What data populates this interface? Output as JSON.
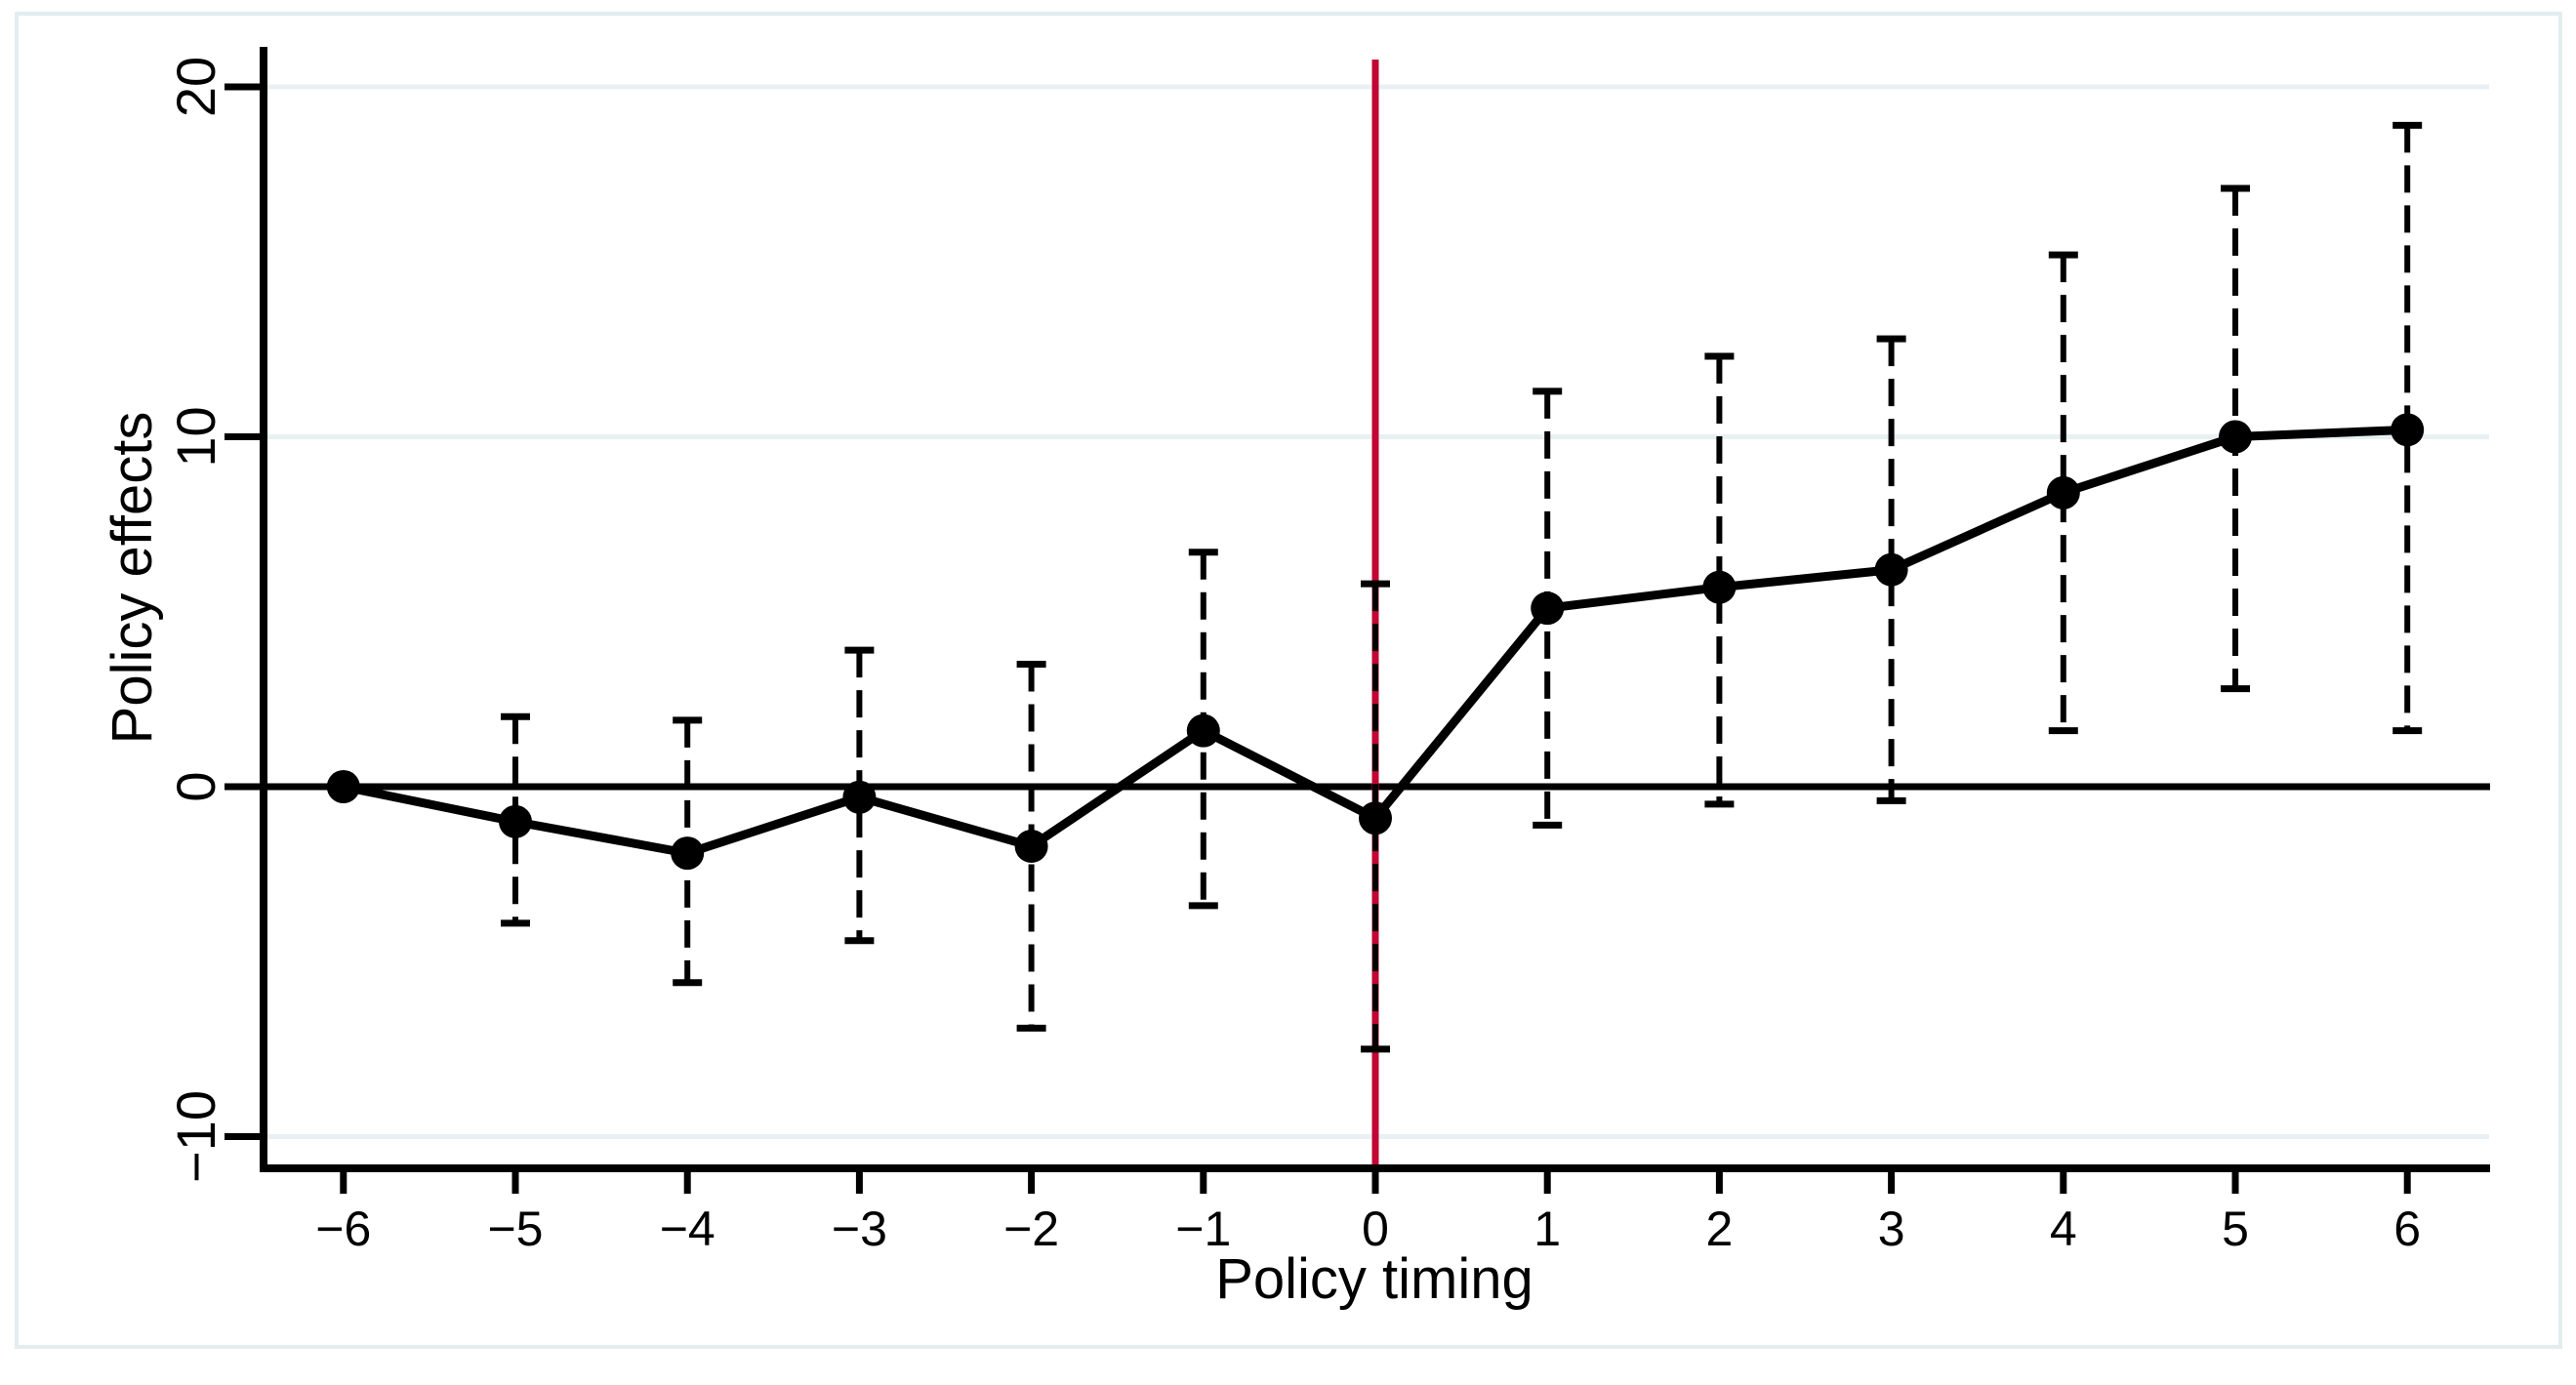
{
  "figure": {
    "background": "#ffffff",
    "frame_color": "#e3edf0"
  },
  "chart_data": {
    "type": "line",
    "title": "",
    "xlabel": "Policy timing",
    "ylabel": "Policy effects",
    "x_ticks": [
      -6,
      -5,
      -4,
      -3,
      -2,
      -1,
      0,
      1,
      2,
      3,
      4,
      5,
      6
    ],
    "y_ticks": [
      -10,
      0,
      10,
      20
    ],
    "y_gridlines": [
      -10,
      10,
      20
    ],
    "xlim": [
      -6.5,
      6.5
    ],
    "ylim": [
      -11,
      21
    ],
    "grid": "horizontal-light",
    "legend": "none",
    "colors": {
      "series": "#000000",
      "event_line": "#c10534",
      "grid": "#e8f0f3",
      "zero_line": "#000000"
    },
    "reference_lines": [
      {
        "axis": "x",
        "value": 0,
        "color": "#c10534",
        "style": "solid",
        "name": "policy-start"
      },
      {
        "axis": "y",
        "value": 0,
        "color": "#000000",
        "style": "solid",
        "name": "zero-effect"
      }
    ],
    "series": [
      {
        "name": "Policy effects",
        "marker": "filled-circle",
        "line_color": "#000000",
        "ci_style": "dashed-whisker-with-caps",
        "points": [
          {
            "x": -6,
            "y": 0.0,
            "ci_low": null,
            "ci_high": null
          },
          {
            "x": -5,
            "y": -1.0,
            "ci_low": -3.9,
            "ci_high": 2.0
          },
          {
            "x": -4,
            "y": -1.9,
            "ci_low": -5.6,
            "ci_high": 1.9
          },
          {
            "x": -3,
            "y": -0.3,
            "ci_low": -4.4,
            "ci_high": 3.9
          },
          {
            "x": -2,
            "y": -1.7,
            "ci_low": -6.9,
            "ci_high": 3.5
          },
          {
            "x": -1,
            "y": 1.6,
            "ci_low": -3.4,
            "ci_high": 6.7
          },
          {
            "x": 0,
            "y": -0.9,
            "ci_low": -7.5,
            "ci_high": 5.8
          },
          {
            "x": 1,
            "y": 5.1,
            "ci_low": -1.1,
            "ci_high": 11.3
          },
          {
            "x": 2,
            "y": 5.7,
            "ci_low": -0.5,
            "ci_high": 12.3
          },
          {
            "x": 3,
            "y": 6.2,
            "ci_low": -0.4,
            "ci_high": 12.8
          },
          {
            "x": 4,
            "y": 8.4,
            "ci_low": 1.6,
            "ci_high": 15.2
          },
          {
            "x": 5,
            "y": 10.0,
            "ci_low": 2.8,
            "ci_high": 17.1
          },
          {
            "x": 6,
            "y": 10.2,
            "ci_low": 1.6,
            "ci_high": 18.9
          }
        ]
      }
    ]
  }
}
